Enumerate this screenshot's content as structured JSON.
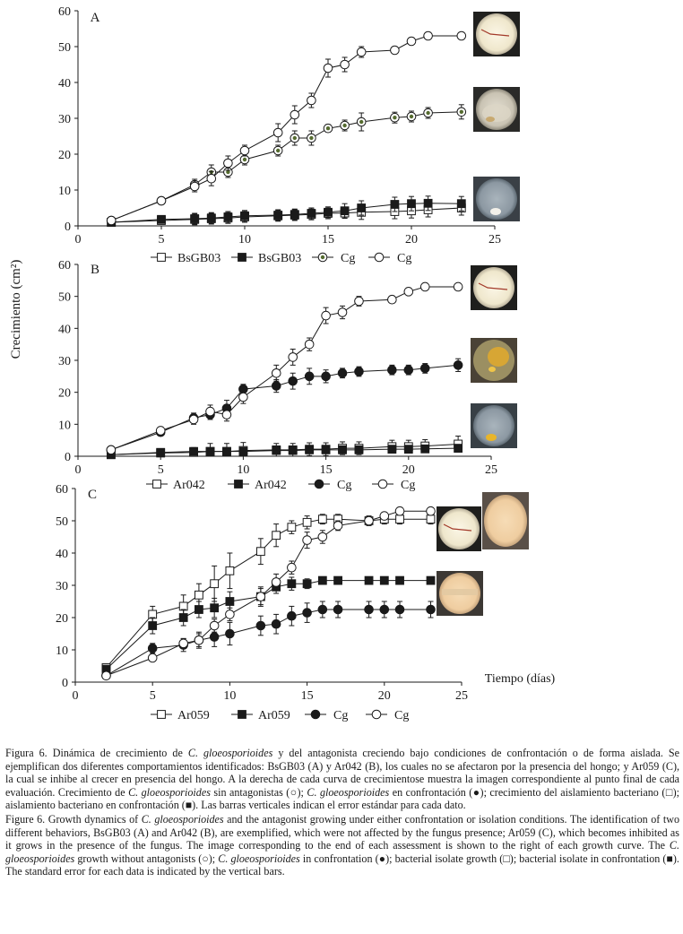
{
  "y_axis_label": "Crecimiento (cm²)",
  "x_axis_label": "Tiempo (días)",
  "colors": {
    "series": "#1a1a1a",
    "cg_confront_fill": "#556b2f"
  },
  "chart_data": [
    {
      "type": "line",
      "panel": "A",
      "xlim": [
        0,
        25
      ],
      "ylim": [
        0,
        60
      ],
      "x_ticks": [
        0,
        5,
        10,
        15,
        20,
        25
      ],
      "y_ticks": [
        0,
        10,
        20,
        30,
        40,
        50,
        60
      ],
      "legend": [
        "BsGB03",
        "BsGB03",
        "Cg",
        "Cg"
      ],
      "series": [
        {
          "name": "BsGB03",
          "role": "bacteria_isolated",
          "marker": "square-open",
          "x": [
            2,
            5,
            7,
            8,
            9,
            10,
            12,
            13,
            14,
            15,
            16,
            17,
            19,
            20,
            21,
            23
          ],
          "y": [
            1,
            1.5,
            1.8,
            2.0,
            2.2,
            2.5,
            2.8,
            3.0,
            3.2,
            3.5,
            3.6,
            3.8,
            4.0,
            4.2,
            4.5,
            5.0
          ],
          "err": [
            0.3,
            1.0,
            1.5,
            1.5,
            1.5,
            1.5,
            1.5,
            1.5,
            1.5,
            1.5,
            1.5,
            2.0,
            2.0,
            2.0,
            2.0,
            2.0
          ]
        },
        {
          "name": "BsGB03",
          "role": "bacteria_confrontation",
          "marker": "square-filled",
          "x": [
            2,
            5,
            7,
            8,
            9,
            10,
            12,
            13,
            14,
            15,
            16,
            17,
            19,
            20,
            21,
            23
          ],
          "y": [
            1,
            1.8,
            2.0,
            2.2,
            2.5,
            2.8,
            3.0,
            3.2,
            3.5,
            3.8,
            4.2,
            5.0,
            6.0,
            6.2,
            6.3,
            6.2
          ],
          "err": [
            0.3,
            1.0,
            1.5,
            1.5,
            1.5,
            1.5,
            1.5,
            1.5,
            1.5,
            1.5,
            2.0,
            2.0,
            2.0,
            2.0,
            2.0,
            2.0
          ]
        },
        {
          "name": "Cg",
          "role": "fungus_confrontation",
          "marker": "circle-olive",
          "x": [
            2,
            5,
            7,
            8,
            9,
            10,
            12,
            13,
            14,
            15,
            16,
            17,
            19,
            20,
            21,
            23
          ],
          "y": [
            1.5,
            7.0,
            11.5,
            15.0,
            15.0,
            18.5,
            21.0,
            24.5,
            24.5,
            27.2,
            28.0,
            29.0,
            30.2,
            30.5,
            31.5,
            31.8
          ],
          "err": [
            0.5,
            1.0,
            1.5,
            2.0,
            1.5,
            1.5,
            1.5,
            2.0,
            2.0,
            1.0,
            1.5,
            2.5,
            1.5,
            1.5,
            1.5,
            2.0
          ]
        },
        {
          "name": "Cg",
          "role": "fungus_alone",
          "marker": "circle-open",
          "x": [
            2,
            5,
            7,
            8,
            9,
            10,
            12,
            13,
            14,
            15,
            16,
            17,
            19,
            20,
            21,
            23
          ],
          "y": [
            1.5,
            7.0,
            11.0,
            13.2,
            17.5,
            21.0,
            26.0,
            31.0,
            35.0,
            44.0,
            45.0,
            48.5,
            49.0,
            51.5,
            53.0,
            53.0
          ],
          "err": [
            0.5,
            1.0,
            1.5,
            2.0,
            2.0,
            1.5,
            2.5,
            2.5,
            2.0,
            2.5,
            2.0,
            1.5,
            1.0,
            1.0,
            1.0,
            1.0
          ]
        }
      ]
    },
    {
      "type": "line",
      "panel": "B",
      "xlim": [
        0,
        25
      ],
      "ylim": [
        0,
        60
      ],
      "x_ticks": [
        0,
        5,
        10,
        15,
        20,
        25
      ],
      "y_ticks": [
        0,
        10,
        20,
        30,
        40,
        50,
        60
      ],
      "legend": [
        "Ar042",
        "Ar042",
        "Cg",
        "Cg"
      ],
      "series": [
        {
          "name": "Ar042",
          "role": "bacteria_isolated",
          "marker": "square-open",
          "x": [
            2,
            5,
            7,
            8,
            9,
            10,
            12,
            13,
            14,
            15,
            16,
            17,
            19,
            20,
            21,
            23
          ],
          "y": [
            0.5,
            1.0,
            1.2,
            1.5,
            1.5,
            1.8,
            2.0,
            2.0,
            2.2,
            2.2,
            2.5,
            2.5,
            3.0,
            3.0,
            3.2,
            3.8
          ],
          "err": [
            0.3,
            1.0,
            1.5,
            2.5,
            2.5,
            2.5,
            2.0,
            2.0,
            2.0,
            2.0,
            2.0,
            2.0,
            2.0,
            2.0,
            2.0,
            2.5
          ]
        },
        {
          "name": "Ar042",
          "role": "bacteria_confrontation",
          "marker": "square-filled",
          "x": [
            2,
            5,
            7,
            8,
            9,
            10,
            12,
            13,
            14,
            15,
            16,
            17,
            19,
            20,
            21,
            23
          ],
          "y": [
            0.5,
            1.2,
            1.5,
            1.5,
            1.5,
            1.5,
            1.8,
            1.8,
            2.0,
            2.0,
            2.0,
            2.0,
            2.2,
            2.2,
            2.3,
            2.5
          ],
          "err": [
            0.3,
            0.8,
            1.0,
            1.0,
            1.0,
            1.0,
            1.0,
            1.0,
            1.0,
            1.0,
            1.0,
            1.0,
            1.0,
            1.0,
            1.0,
            1.0
          ]
        },
        {
          "name": "Cg",
          "role": "fungus_confrontation",
          "marker": "circle-filled",
          "x": [
            2,
            5,
            7,
            8,
            9,
            10,
            12,
            13,
            14,
            15,
            16,
            17,
            19,
            20,
            21,
            23
          ],
          "y": [
            2.0,
            7.5,
            12.0,
            13.0,
            15.0,
            21.0,
            22.0,
            23.5,
            25.0,
            25.0,
            26.0,
            26.5,
            27.0,
            27.0,
            27.5,
            28.5
          ],
          "err": [
            0.5,
            1.0,
            1.5,
            1.5,
            2.5,
            1.5,
            2.0,
            2.5,
            2.5,
            2.0,
            1.5,
            1.5,
            1.5,
            1.5,
            1.5,
            2.0
          ]
        },
        {
          "name": "Cg",
          "role": "fungus_alone",
          "marker": "circle-open",
          "x": [
            2,
            5,
            7,
            8,
            9,
            10,
            12,
            13,
            14,
            15,
            16,
            17,
            19,
            20,
            21,
            23
          ],
          "y": [
            2.0,
            8.0,
            11.5,
            14.0,
            13.0,
            18.5,
            26.0,
            31.0,
            35.0,
            44.0,
            45.0,
            48.5,
            49.0,
            51.5,
            53.0,
            53.0
          ],
          "err": [
            0.5,
            1.0,
            1.5,
            2.0,
            2.0,
            2.0,
            2.5,
            2.5,
            2.0,
            2.5,
            2.0,
            1.5,
            1.0,
            1.0,
            1.0,
            1.0
          ]
        }
      ]
    },
    {
      "type": "line",
      "panel": "C",
      "xlim": [
        0,
        25
      ],
      "ylim": [
        0,
        60
      ],
      "x_ticks": [
        0,
        5,
        10,
        15,
        20,
        25
      ],
      "y_ticks": [
        0,
        10,
        20,
        30,
        40,
        50,
        60
      ],
      "legend": [
        "Ar059",
        "Ar059",
        "Cg",
        "Cg"
      ],
      "series": [
        {
          "name": "Ar059",
          "role": "bacteria_isolated",
          "marker": "square-open",
          "x": [
            2,
            5,
            7,
            8,
            9,
            10,
            12,
            13,
            14,
            15,
            16,
            17,
            19,
            20,
            21,
            23
          ],
          "y": [
            4.5,
            21.0,
            23.5,
            27.0,
            30.5,
            34.5,
            40.5,
            45.5,
            48.0,
            49.5,
            50.5,
            50.5,
            50.0,
            50.5,
            50.5,
            50.5
          ],
          "err": [
            0.5,
            2.5,
            3.5,
            3.5,
            5.5,
            5.5,
            4.0,
            3.5,
            2.0,
            2.0,
            1.5,
            1.5,
            1.5,
            1.5,
            1.5,
            1.5
          ]
        },
        {
          "name": "Ar059",
          "role": "bacteria_confrontation",
          "marker": "square-filled",
          "x": [
            2,
            5,
            7,
            8,
            9,
            10,
            12,
            13,
            14,
            15,
            16,
            17,
            19,
            20,
            21,
            23
          ],
          "y": [
            4.0,
            17.5,
            20.0,
            22.5,
            23.0,
            25.0,
            26.5,
            29.5,
            30.5,
            30.5,
            31.5,
            31.5,
            31.5,
            31.5,
            31.5,
            31.5
          ],
          "err": [
            0.5,
            2.5,
            2.5,
            2.5,
            3.0,
            3.0,
            3.0,
            2.0,
            2.0,
            1.5,
            1.0,
            1.0,
            1.0,
            1.0,
            1.0,
            1.0
          ]
        },
        {
          "name": "Cg",
          "role": "fungus_confrontation",
          "marker": "circle-filled",
          "x": [
            2,
            5,
            7,
            8,
            9,
            10,
            12,
            13,
            14,
            15,
            16,
            17,
            19,
            20,
            21,
            23
          ],
          "y": [
            2.0,
            10.5,
            11.5,
            13.0,
            14.0,
            15.0,
            17.5,
            18.0,
            20.5,
            21.5,
            22.5,
            22.5,
            22.5,
            22.5,
            22.5,
            22.5
          ],
          "err": [
            0.5,
            1.5,
            2.0,
            2.5,
            3.0,
            3.5,
            3.0,
            3.0,
            3.0,
            3.0,
            2.5,
            2.5,
            2.5,
            2.5,
            2.5,
            2.5
          ]
        },
        {
          "name": "Cg",
          "role": "fungus_alone",
          "marker": "circle-open",
          "x": [
            2,
            5,
            7,
            8,
            9,
            10,
            12,
            13,
            14,
            15,
            16,
            17,
            19,
            20,
            21,
            23
          ],
          "y": [
            2.0,
            7.5,
            12.0,
            13.0,
            17.5,
            21.0,
            26.5,
            31.0,
            35.5,
            44.0,
            45.0,
            48.5,
            50.0,
            51.5,
            53.0,
            53.0
          ],
          "err": [
            0.5,
            1.0,
            1.5,
            2.0,
            2.0,
            2.0,
            2.5,
            2.5,
            2.0,
            2.5,
            2.0,
            1.5,
            1.0,
            1.0,
            1.0,
            1.0
          ]
        }
      ]
    }
  ],
  "caption": {
    "es": {
      "figura": "Figura 6.",
      "t1": " Dinámica de crecimiento de ",
      "sp1": "C. gloeosporioides",
      "t2": " y del antagonista creciendo bajo condiciones de confrontación o de forma aislada. Se ejemplifican dos diferentes comportamientos identificados: BsGB03 (A) y Ar042 (B), los cuales no se afectaron por la presencia del hongo; y Ar059 (C), la cual se inhibe al crecer en presencia del hongo. A la derecha de cada curva de crecimientose muestra la imagen correspondiente al punto final de cada evaluación. Crecimiento de ",
      "sp2": "C. gloeosporioides",
      "t3": " sin antagonistas (",
      "sym_open_circle": "○",
      "t4": "); ",
      "sp3": "C. gloeosporioides",
      "t5": " en confrontación (",
      "sym_filled_circle": "●",
      "t6": "); crecimiento del aislamiento bacteriano (",
      "sym_open_square": "□",
      "t7": "); aislamiento bacteriano en confrontación (",
      "sym_filled_square": "■",
      "t8": "). Las barras verticales indican el error estándar para cada dato."
    },
    "en": {
      "figura": "Figure 6.",
      "t1": " Growth dynamics of ",
      "sp1": "C. gloeosporioides",
      "t2": " and the antagonist growing under either confrontation or isolation conditions. The identification of two different behaviors, BsGB03 (A) and Ar042 (B), are exemplified, which were not affected by the fungus presence; Ar059 (C), which becomes inhibited as it grows in the presence of the fungus. The image corresponding to the end of each assessment is shown to the right of each growth curve. The ",
      "sp2": "C. gloeosporioides",
      "t3": " growth without antagonists (",
      "sym_open_circle": "○",
      "t4": "); ",
      "sp3": "C. gloeosporioides",
      "t5": " in confrontation (",
      "sym_filled_circle": "●",
      "t6": "); bacterial isolate growth (",
      "sym_open_square": "□",
      "t7": "); bacterial isolate in confrontation (",
      "sym_filled_square": "■",
      "t8": "). The standard error for each data is indicated by the vertical bars."
    }
  }
}
